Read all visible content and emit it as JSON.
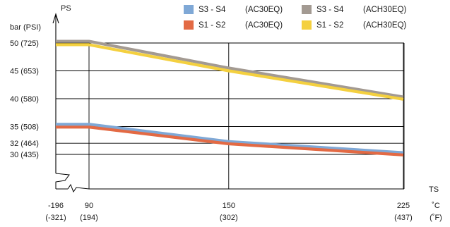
{
  "chart_data": {
    "type": "line",
    "y_axis": {
      "name": "PS",
      "unit_label": "bar (PSI)",
      "ticks": [
        {
          "bar": 30,
          "label": "30  (435)"
        },
        {
          "bar": 32,
          "label": "32  (464)"
        },
        {
          "bar": 35,
          "label": "35  (508)"
        },
        {
          "bar": 40,
          "label": "40  (580)"
        },
        {
          "bar": 45,
          "label": "45  (653)"
        },
        {
          "bar": 50,
          "label": "50  (725)"
        }
      ]
    },
    "x_axis": {
      "name": "TS",
      "ticks": [
        {
          "value": -196,
          "label": "-196",
          "sublabel": "(-321)"
        },
        {
          "value": 90,
          "label": "90",
          "sublabel": "(194)"
        },
        {
          "value": 150,
          "label": "150",
          "sublabel": "(302)"
        },
        {
          "value": 225,
          "label": "225",
          "sublabel": "(437)"
        }
      ],
      "unit": "˚C",
      "unit_alt": "(˚F)",
      "axis_break": true
    },
    "series": [
      {
        "name": "S3 - S4",
        "code": "(ACH30EQ)",
        "color": "#a39a92",
        "points": [
          [
            -196,
            50.3
          ],
          [
            90,
            50.3
          ],
          [
            150,
            45.5
          ],
          [
            225,
            40.3
          ]
        ]
      },
      {
        "name": "S1 - S2",
        "code": "(ACH30EQ)",
        "color": "#f4d03f",
        "points": [
          [
            -196,
            49.7
          ],
          [
            90,
            49.7
          ],
          [
            150,
            45.0
          ],
          [
            225,
            39.9
          ]
        ]
      },
      {
        "name": "S3 - S4",
        "code": "(AC30EQ)",
        "color": "#7fa8d6",
        "points": [
          [
            -196,
            35.4
          ],
          [
            90,
            35.4
          ],
          [
            150,
            32.3
          ],
          [
            225,
            30.3
          ]
        ]
      },
      {
        "name": "S1 - S2",
        "code": "(AC30EQ)",
        "color": "#e36a44",
        "points": [
          [
            -196,
            34.9
          ],
          [
            90,
            34.9
          ],
          [
            150,
            31.9
          ],
          [
            225,
            29.9
          ]
        ]
      }
    ],
    "legend": {
      "placement": "top-right",
      "order": [
        2,
        0,
        3,
        1
      ]
    },
    "grid": true
  }
}
